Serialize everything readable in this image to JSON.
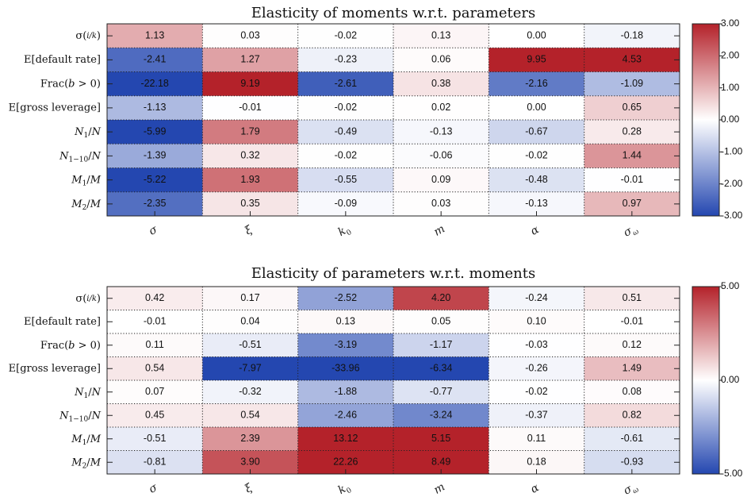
{
  "chart_data": [
    {
      "type": "heatmap",
      "title": "Elasticity of moments w.r.t. parameters",
      "row_labels": [
        "σ(i/k)",
        "E[default rate]",
        "Frac(b > 0)",
        "E[gross leverage]",
        "N1/N",
        "N1−10/N",
        "M1/M",
        "M2/M"
      ],
      "col_labels": [
        "σ",
        "ξ",
        "k0",
        "m",
        "α",
        "σω"
      ],
      "values": [
        [
          1.13,
          0.03,
          -0.02,
          0.13,
          0.0,
          -0.18
        ],
        [
          -2.41,
          1.27,
          -0.23,
          0.06,
          9.95,
          4.53
        ],
        [
          -22.18,
          9.19,
          -2.61,
          0.38,
          -2.16,
          -1.09
        ],
        [
          -1.13,
          -0.01,
          -0.02,
          0.02,
          0.0,
          0.65
        ],
        [
          -5.99,
          1.79,
          -0.49,
          -0.13,
          -0.67,
          0.28
        ],
        [
          -1.39,
          0.32,
          -0.02,
          -0.06,
          -0.02,
          1.44
        ],
        [
          -5.22,
          1.93,
          -0.55,
          0.09,
          -0.48,
          -0.01
        ],
        [
          -2.35,
          0.35,
          -0.09,
          0.03,
          -0.13,
          0.97
        ]
      ],
      "labels": [
        [
          "1.13",
          "0.03",
          "-0.02",
          "0.13",
          "0.00",
          "-0.18"
        ],
        [
          "-2.41",
          "1.27",
          "-0.23",
          "0.06",
          "9.95",
          "4.53"
        ],
        [
          "-22.18",
          "9.19",
          "-2.61",
          "0.38",
          "-2.16",
          "-1.09"
        ],
        [
          "-1.13",
          "-0.01",
          "-0.02",
          "0.02",
          "0.00",
          "0.65"
        ],
        [
          "-5.99",
          "1.79",
          "-0.49",
          "-0.13",
          "-0.67",
          "0.28"
        ],
        [
          "-1.39",
          "0.32",
          "-0.02",
          "-0.06",
          "-0.02",
          "1.44"
        ],
        [
          "-5.22",
          "1.93",
          "-0.55",
          "0.09",
          "-0.48",
          "-0.01"
        ],
        [
          "-2.35",
          "0.35",
          "-0.09",
          "0.03",
          "-0.13",
          "0.97"
        ]
      ],
      "colormap": "diverging blue-white-red",
      "vmin": -3,
      "vmax": 3,
      "colorbar_ticks": [
        "3.00",
        "2.00",
        "1.00",
        "0.00",
        "-1.00",
        "-2.00",
        "-3.00"
      ],
      "colors": {
        "low": "#2447b0",
        "mid": "#ffffff",
        "high": "#b4222a"
      }
    },
    {
      "type": "heatmap",
      "title": "Elasticity of parameters w.r.t. moments",
      "row_labels": [
        "σ(i/k)",
        "E[default rate]",
        "Frac(b > 0)",
        "E[gross leverage]",
        "N1/N",
        "N1−10/N",
        "M1/M",
        "M2/M"
      ],
      "col_labels": [
        "σ",
        "ξ",
        "k0",
        "m",
        "α",
        "σω"
      ],
      "values": [
        [
          0.42,
          0.17,
          -2.52,
          4.2,
          -0.24,
          0.51
        ],
        [
          -0.01,
          0.04,
          0.13,
          0.05,
          0.1,
          -0.01
        ],
        [
          0.11,
          -0.51,
          -3.19,
          -1.17,
          -0.03,
          0.12
        ],
        [
          0.54,
          -7.97,
          -33.96,
          -6.34,
          -0.26,
          1.49
        ],
        [
          0.07,
          -0.32,
          -1.88,
          -0.77,
          -0.02,
          0.08
        ],
        [
          0.45,
          0.54,
          -2.46,
          -3.24,
          -0.37,
          0.82
        ],
        [
          -0.51,
          2.39,
          13.12,
          5.15,
          0.11,
          -0.61
        ],
        [
          -0.81,
          3.9,
          22.26,
          8.49,
          0.18,
          -0.93
        ]
      ],
      "labels": [
        [
          "0.42",
          "0.17",
          "-2.52",
          "4.20",
          "-0.24",
          "0.51"
        ],
        [
          "-0.01",
          "0.04",
          "0.13",
          "0.05",
          "0.10",
          "-0.01"
        ],
        [
          "0.11",
          "-0.51",
          "-3.19",
          "-1.17",
          "-0.03",
          "0.12"
        ],
        [
          "0.54",
          "-7.97",
          "-33.96",
          "-6.34",
          "-0.26",
          "1.49"
        ],
        [
          "0.07",
          "-0.32",
          "-1.88",
          "-0.77",
          "-0.02",
          "0.08"
        ],
        [
          "0.45",
          "0.54",
          "-2.46",
          "-3.24",
          "-0.37",
          "0.82"
        ],
        [
          "-0.51",
          "2.39",
          "13.12",
          "5.15",
          "0.11",
          "-0.61"
        ],
        [
          "-0.81",
          "3.90",
          "22.26",
          "8.49",
          "0.18",
          "-0.93"
        ]
      ],
      "colormap": "diverging blue-white-red",
      "vmin": -5,
      "vmax": 5,
      "colorbar_ticks": [
        "5.00",
        "0.00",
        "-5.00"
      ],
      "colors": {
        "low": "#2447b0",
        "mid": "#ffffff",
        "high": "#b4222a"
      }
    }
  ]
}
